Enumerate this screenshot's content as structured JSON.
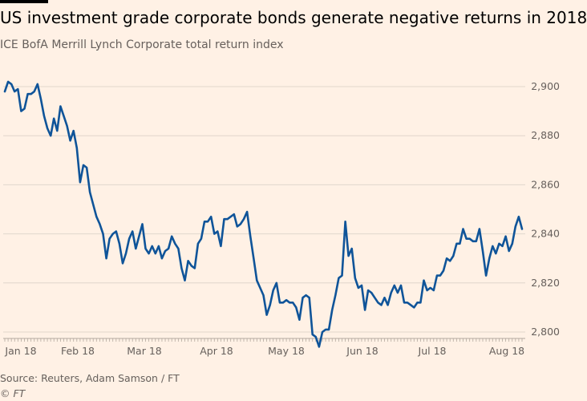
{
  "chart_data": {
    "type": "line",
    "title": "US investment grade corporate bonds generate negative returns in 2018",
    "subtitle": "ICE BofA Merrill Lynch Corporate total return index",
    "xlabel": "",
    "ylabel": "",
    "ylim": [
      2790,
      2910
    ],
    "y_ticks": [
      2800,
      2820,
      2840,
      2860,
      2880,
      2900
    ],
    "y_tick_labels": [
      "2,800",
      "2,820",
      "2,840",
      "2,860",
      "2,880",
      "2,900"
    ],
    "x_tick_labels": [
      "Jan 18",
      "Feb 18",
      "Mar 18",
      "Apr 18",
      "May 18",
      "Jun 18",
      "Jul 18",
      "Aug 18"
    ],
    "grid": true,
    "line_color": "#0f5499",
    "series": [
      {
        "values": [
          2898,
          2902,
          2901,
          2898,
          2899,
          2890,
          2891,
          2897,
          2897,
          2898,
          2901,
          2895,
          2888,
          2883,
          2880,
          2887,
          2882,
          2892,
          2888,
          2884,
          2878,
          2882,
          2875,
          2861,
          2868,
          2867,
          2857,
          2852,
          2847,
          2844,
          2840,
          2830,
          2838,
          2840,
          2841,
          2836,
          2828,
          2832,
          2838,
          2841,
          2834,
          2839,
          2844,
          2834,
          2832,
          2835,
          2832,
          2835,
          2830,
          2833,
          2834,
          2839,
          2836,
          2834,
          2826,
          2821,
          2829,
          2827,
          2826,
          2836,
          2838,
          2845,
          2845,
          2847,
          2840,
          2841,
          2835,
          2846,
          2846,
          2847,
          2848,
          2843,
          2844,
          2846,
          2849,
          2839,
          2830,
          2821,
          2818,
          2815,
          2807,
          2811,
          2817,
          2820,
          2812,
          2812,
          2813,
          2812,
          2812,
          2810,
          2805,
          2814,
          2815,
          2814,
          2799,
          2798,
          2794,
          2800,
          2801,
          2801,
          2809,
          2815,
          2822,
          2823,
          2845,
          2831,
          2834,
          2822,
          2818,
          2819,
          2809,
          2817,
          2816,
          2814,
          2812,
          2811,
          2814,
          2811,
          2816,
          2819,
          2816,
          2819,
          2812,
          2812,
          2811,
          2810,
          2812,
          2812,
          2821,
          2817,
          2818,
          2817,
          2823,
          2823,
          2825,
          2830,
          2829,
          2831,
          2836,
          2836,
          2842,
          2838,
          2838,
          2837,
          2837,
          2842,
          2833,
          2823,
          2830,
          2835,
          2832,
          2836,
          2835,
          2839,
          2833,
          2836,
          2843,
          2847,
          2842
        ]
      }
    ]
  },
  "footer": {
    "source": "Source: Reuters, Adam Samson / FT",
    "credit": "© FT"
  }
}
